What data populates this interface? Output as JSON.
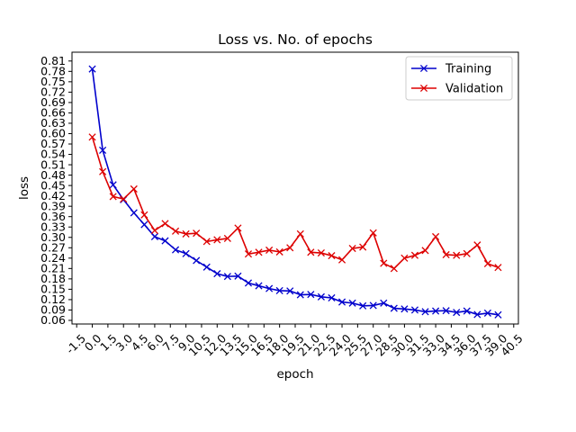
{
  "chart_data": {
    "type": "line",
    "title": "Loss vs. No. of epochs",
    "xlabel": "epoch",
    "ylabel": "loss",
    "xlim": [
      -1.95,
      40.95
    ],
    "ylim": [
      0.0495,
      0.8355
    ],
    "xticks": [
      -1.5,
      0.0,
      1.5,
      3.0,
      4.5,
      6.0,
      7.5,
      9.0,
      10.5,
      12.0,
      13.5,
      15.0,
      16.5,
      18.0,
      19.5,
      21.0,
      22.5,
      24.0,
      25.5,
      27.0,
      28.5,
      30.0,
      31.5,
      33.0,
      34.5,
      36.0,
      37.5,
      39.0,
      40.5
    ],
    "xtick_labels": [
      "-1.5",
      "0.0",
      "1.5",
      "3.0",
      "4.5",
      "6.0",
      "7.5",
      "9.0",
      "10.5",
      "12.0",
      "13.5",
      "15.0",
      "16.5",
      "18.0",
      "19.5",
      "21.0",
      "22.5",
      "24.0",
      "25.5",
      "27.0",
      "28.5",
      "30.0",
      "31.5",
      "33.0",
      "34.5",
      "36.0",
      "37.5",
      "39.0",
      "40.5"
    ],
    "yticks": [
      0.06,
      0.09,
      0.12,
      0.15,
      0.18,
      0.21,
      0.24,
      0.27,
      0.3,
      0.33,
      0.36,
      0.39,
      0.42,
      0.45,
      0.48,
      0.51,
      0.54,
      0.57,
      0.6,
      0.63,
      0.66,
      0.69,
      0.72,
      0.75,
      0.78,
      0.81
    ],
    "ytick_labels": [
      "0.06",
      "0.09",
      "0.12",
      "0.15",
      "0.18",
      "0.21",
      "0.24",
      "0.27",
      "0.30",
      "0.33",
      "0.36",
      "0.39",
      "0.42",
      "0.45",
      "0.48",
      "0.51",
      "0.54",
      "0.57",
      "0.60",
      "0.63",
      "0.66",
      "0.69",
      "0.72",
      "0.75",
      "0.78",
      "0.81"
    ],
    "x": [
      0,
      1,
      2,
      3,
      4,
      5,
      6,
      7,
      8,
      9,
      10,
      11,
      12,
      13,
      14,
      15,
      16,
      17,
      18,
      19,
      20,
      21,
      22,
      23,
      24,
      25,
      26,
      27,
      28,
      29,
      30,
      31,
      32,
      33,
      34,
      35,
      36,
      37,
      38,
      39
    ],
    "series": [
      {
        "name": "Training",
        "color": "#0000cc",
        "marker": "x",
        "values": [
          0.787,
          0.552,
          0.452,
          0.409,
          0.371,
          0.337,
          0.302,
          0.29,
          0.264,
          0.253,
          0.233,
          0.214,
          0.195,
          0.187,
          0.188,
          0.168,
          0.16,
          0.152,
          0.146,
          0.145,
          0.134,
          0.135,
          0.128,
          0.125,
          0.113,
          0.11,
          0.102,
          0.103,
          0.11,
          0.095,
          0.093,
          0.09,
          0.085,
          0.087,
          0.088,
          0.083,
          0.087,
          0.077,
          0.081,
          0.076
        ]
      },
      {
        "name": "Validation",
        "color": "#dd0000",
        "marker": "x",
        "values": [
          0.59,
          0.49,
          0.418,
          0.411,
          0.44,
          0.365,
          0.32,
          0.34,
          0.318,
          0.31,
          0.312,
          0.288,
          0.293,
          0.297,
          0.327,
          0.252,
          0.257,
          0.263,
          0.258,
          0.27,
          0.31,
          0.257,
          0.255,
          0.247,
          0.235,
          0.268,
          0.272,
          0.313,
          0.225,
          0.21,
          0.24,
          0.248,
          0.262,
          0.302,
          0.25,
          0.248,
          0.253,
          0.278,
          0.224,
          0.213
        ]
      }
    ],
    "grid": false,
    "legend_position": "top-right"
  }
}
